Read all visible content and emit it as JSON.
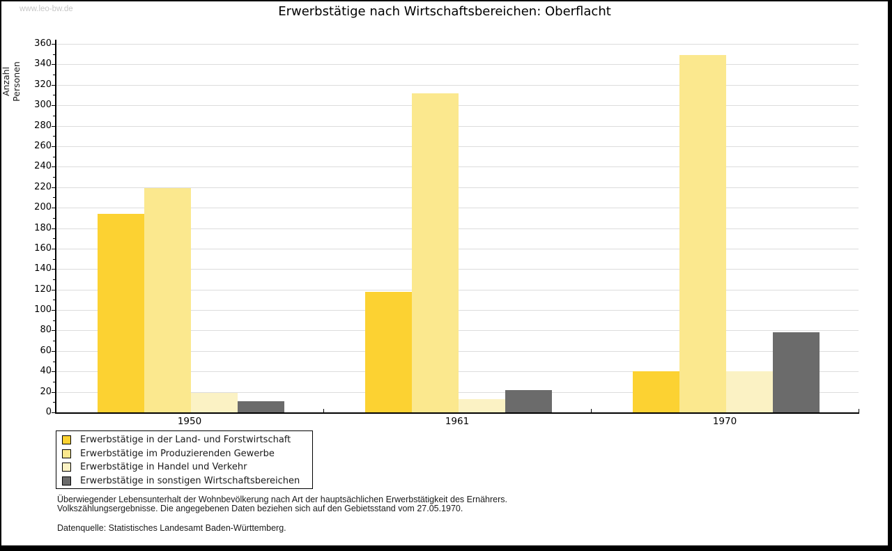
{
  "watermark": "www.leo-bw.de",
  "header": {
    "title": "Erwerbstätige nach Wirtschaftsbereichen: Oberflacht"
  },
  "footer": {
    "note_line1": "Überwiegender Lebensunterhalt der Wohnbevölkerung nach Art der hauptsächlichen Erwerbstätigkeit des Ernährers.",
    "note_line2": "Volkszählungsergebnisse. Die angegebenen Daten beziehen sich auf den Gebietsstand vom 27.05.1970.",
    "source": "Datenquelle: Statistisches Landesamt Baden-Württemberg."
  },
  "chart_data": {
    "type": "bar",
    "title": "Erwerbstätige nach Wirtschaftsbereichen: Oberflacht",
    "xlabel": "",
    "ylabel": "Anzahl Personen",
    "categories": [
      "1950",
      "1961",
      "1970"
    ],
    "series": [
      {
        "name": "Erwerbstätige in der Land- und Forstwirtschaft",
        "color": "#fcd232",
        "values": [
          194,
          118,
          40
        ]
      },
      {
        "name": "Erwerbstätige im Produzierenden Gewerbe",
        "color": "#fbe88e",
        "values": [
          219,
          312,
          349
        ]
      },
      {
        "name": "Erwerbstätige in Handel und Verkehr",
        "color": "#fbf2c4",
        "values": [
          19,
          13,
          40
        ]
      },
      {
        "name": "Erwerbstätige in sonstigen Wirtschaftsbereichen",
        "color": "#6b6b6b",
        "values": [
          11,
          22,
          78
        ]
      }
    ],
    "ylim": [
      0,
      360
    ],
    "ytick_step": 20,
    "yminor_step": 10,
    "grid": true,
    "legend_position": "bottom-left",
    "colors": {
      "gridline": "#dcdcdc",
      "axis": "#000000",
      "text": "#1a1a1a",
      "watermark": "#c6c6c6"
    }
  }
}
